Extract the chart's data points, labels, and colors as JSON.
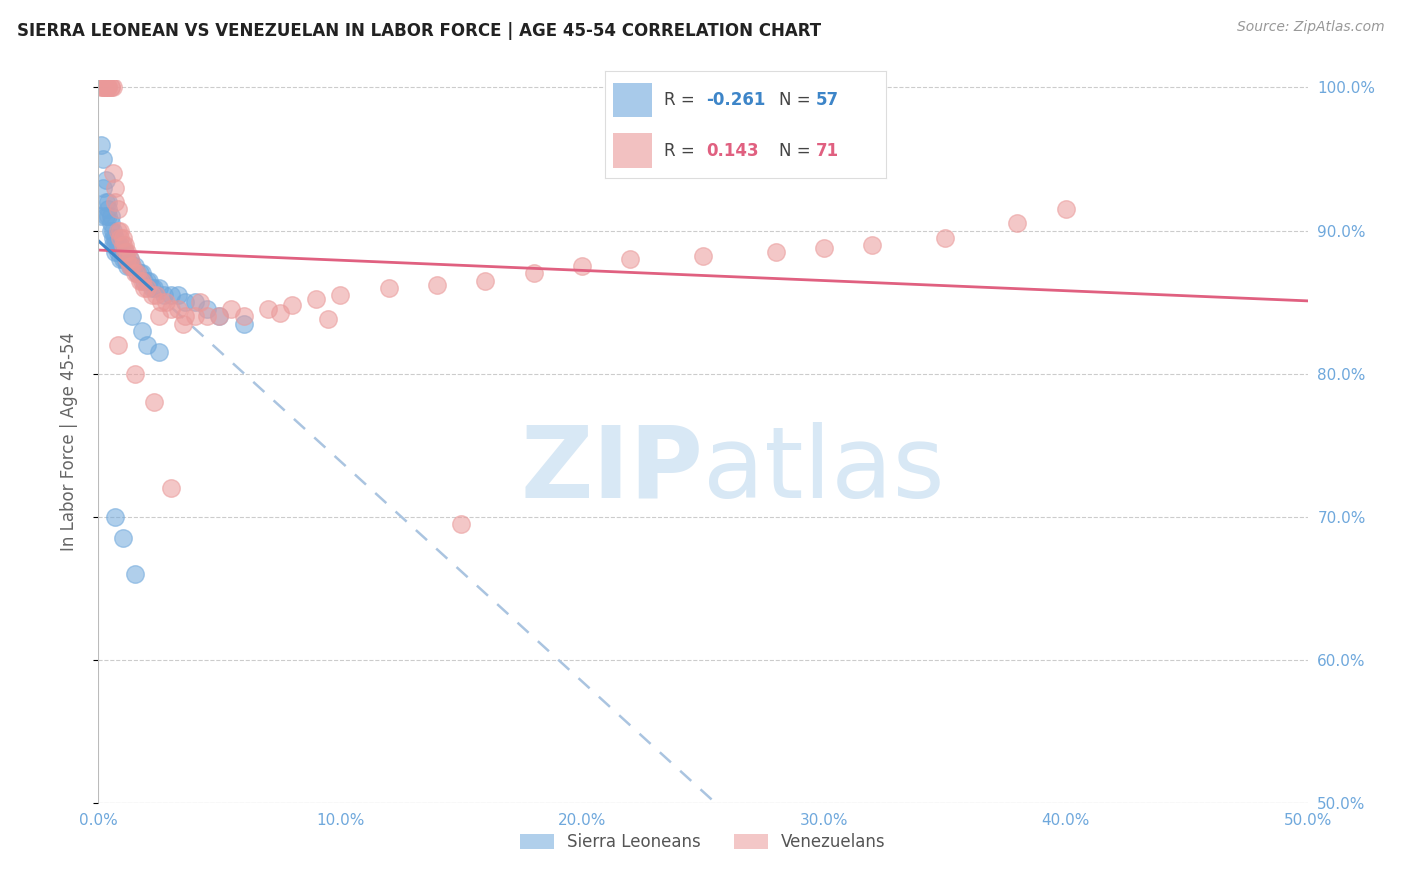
{
  "title": "SIERRA LEONEAN VS VENEZUELAN IN LABOR FORCE | AGE 45-54 CORRELATION CHART",
  "source": "Source: ZipAtlas.com",
  "ylabel": "In Labor Force | Age 45-54",
  "xlim": [
    0.0,
    0.5
  ],
  "ylim": [
    0.5,
    1.005
  ],
  "xtick_vals": [
    0.0,
    0.1,
    0.2,
    0.3,
    0.4,
    0.5
  ],
  "ytick_vals": [
    0.5,
    0.6,
    0.7,
    0.8,
    0.9,
    1.0
  ],
  "ytick_labels_right": [
    "50.0%",
    "60.0%",
    "70.0%",
    "80.0%",
    "90.0%",
    "100.0%"
  ],
  "xtick_labels": [
    "0.0%",
    "10.0%",
    "20.0%",
    "30.0%",
    "40.0%",
    "50.0%"
  ],
  "blue_color": "#6fa8dc",
  "pink_color": "#ea9999",
  "blue_line_color": "#3d85c8",
  "pink_line_color": "#e06080",
  "dashed_line_color": "#aac4e0",
  "axis_color": "#6fa8dc",
  "legend_r_blue": "-0.261",
  "legend_n_blue": "57",
  "legend_r_pink": "0.143",
  "legend_n_pink": "71",
  "blue_scatter_x": [
    0.001,
    0.001,
    0.002,
    0.002,
    0.003,
    0.003,
    0.003,
    0.004,
    0.004,
    0.004,
    0.005,
    0.005,
    0.005,
    0.006,
    0.006,
    0.006,
    0.007,
    0.007,
    0.007,
    0.008,
    0.008,
    0.009,
    0.009,
    0.01,
    0.01,
    0.011,
    0.011,
    0.012,
    0.012,
    0.013,
    0.013,
    0.014,
    0.015,
    0.016,
    0.017,
    0.018,
    0.019,
    0.02,
    0.021,
    0.022,
    0.023,
    0.025,
    0.027,
    0.03,
    0.033,
    0.036,
    0.04,
    0.045,
    0.05,
    0.06,
    0.007,
    0.01,
    0.015,
    0.018,
    0.02,
    0.014,
    0.025
  ],
  "blue_scatter_y": [
    0.96,
    0.91,
    0.95,
    0.93,
    0.935,
    0.92,
    0.91,
    0.92,
    0.915,
    0.91,
    0.91,
    0.905,
    0.9,
    0.9,
    0.895,
    0.89,
    0.895,
    0.89,
    0.885,
    0.89,
    0.885,
    0.89,
    0.88,
    0.885,
    0.88,
    0.885,
    0.88,
    0.88,
    0.875,
    0.88,
    0.875,
    0.875,
    0.875,
    0.87,
    0.87,
    0.87,
    0.865,
    0.865,
    0.865,
    0.86,
    0.86,
    0.86,
    0.855,
    0.855,
    0.855,
    0.85,
    0.85,
    0.845,
    0.84,
    0.835,
    0.7,
    0.685,
    0.66,
    0.83,
    0.82,
    0.84,
    0.815
  ],
  "pink_scatter_x": [
    0.001,
    0.002,
    0.002,
    0.003,
    0.003,
    0.004,
    0.004,
    0.005,
    0.005,
    0.006,
    0.006,
    0.007,
    0.007,
    0.008,
    0.008,
    0.009,
    0.009,
    0.01,
    0.01,
    0.011,
    0.011,
    0.012,
    0.012,
    0.013,
    0.013,
    0.014,
    0.015,
    0.016,
    0.017,
    0.018,
    0.019,
    0.02,
    0.022,
    0.024,
    0.026,
    0.028,
    0.03,
    0.033,
    0.036,
    0.04,
    0.045,
    0.05,
    0.06,
    0.07,
    0.08,
    0.09,
    0.1,
    0.12,
    0.14,
    0.16,
    0.18,
    0.2,
    0.22,
    0.25,
    0.28,
    0.3,
    0.32,
    0.35,
    0.38,
    0.4,
    0.15,
    0.025,
    0.035,
    0.055,
    0.075,
    0.095,
    0.042,
    0.008,
    0.015,
    0.023,
    0.03
  ],
  "pink_scatter_y": [
    1.0,
    1.0,
    1.0,
    1.0,
    1.0,
    1.0,
    1.0,
    1.0,
    1.0,
    1.0,
    0.94,
    0.93,
    0.92,
    0.915,
    0.9,
    0.9,
    0.895,
    0.895,
    0.89,
    0.89,
    0.885,
    0.885,
    0.88,
    0.88,
    0.875,
    0.875,
    0.87,
    0.87,
    0.865,
    0.865,
    0.86,
    0.86,
    0.855,
    0.855,
    0.85,
    0.85,
    0.845,
    0.845,
    0.84,
    0.84,
    0.84,
    0.84,
    0.84,
    0.845,
    0.848,
    0.852,
    0.855,
    0.86,
    0.862,
    0.865,
    0.87,
    0.875,
    0.88,
    0.882,
    0.885,
    0.888,
    0.89,
    0.895,
    0.905,
    0.915,
    0.695,
    0.84,
    0.835,
    0.845,
    0.842,
    0.838,
    0.85,
    0.82,
    0.8,
    0.78,
    0.72
  ],
  "watermark_zip": "ZIP",
  "watermark_atlas": "atlas",
  "watermark_color": "#d8e8f5",
  "background_color": "#ffffff",
  "grid_color": "#cccccc",
  "blue_line_x_end": 0.022,
  "pink_line_x_start": 0.0,
  "pink_line_x_end": 0.5
}
